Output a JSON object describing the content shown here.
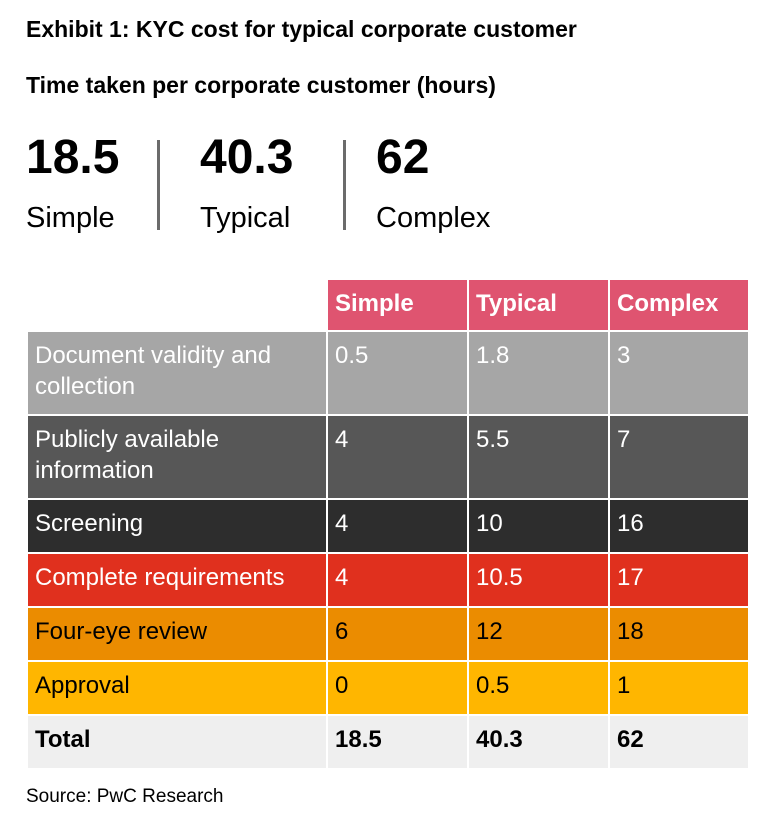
{
  "title": "Exhibit 1: KYC cost for typical corporate customer",
  "subtitle": "Time taken per corporate customer (hours)",
  "summary": [
    {
      "value": "18.5",
      "label": "Simple"
    },
    {
      "value": "40.3",
      "label": "Typical"
    },
    {
      "value": "62",
      "label": "Complex"
    }
  ],
  "table": {
    "headers": [
      "",
      "Simple",
      "Typical",
      "Complex"
    ],
    "rows": [
      {
        "label": "Document validity and collection",
        "values": [
          "0.5",
          "1.8",
          "3"
        ],
        "color": "#a6a6a6"
      },
      {
        "label": "Publicly available information",
        "values": [
          "4",
          "5.5",
          "7"
        ],
        "color": "#575757"
      },
      {
        "label": "Screening",
        "values": [
          "4",
          "10",
          "16"
        ],
        "color": "#2d2d2d"
      },
      {
        "label": "Complete requirements",
        "values": [
          "4",
          "10.5",
          "17"
        ],
        "color": "#e0301e"
      },
      {
        "label": "Four-eye review",
        "values": [
          "6",
          "12",
          "18"
        ],
        "color": "#eb8c00"
      },
      {
        "label": "Approval",
        "values": [
          "0",
          "0.5",
          "1"
        ],
        "color": "#ffb600"
      }
    ],
    "total": {
      "label": "Total",
      "values": [
        "18.5",
        "40.3",
        "62"
      ]
    },
    "header_color": "#df5470"
  },
  "source": "Source: PwC Research"
}
